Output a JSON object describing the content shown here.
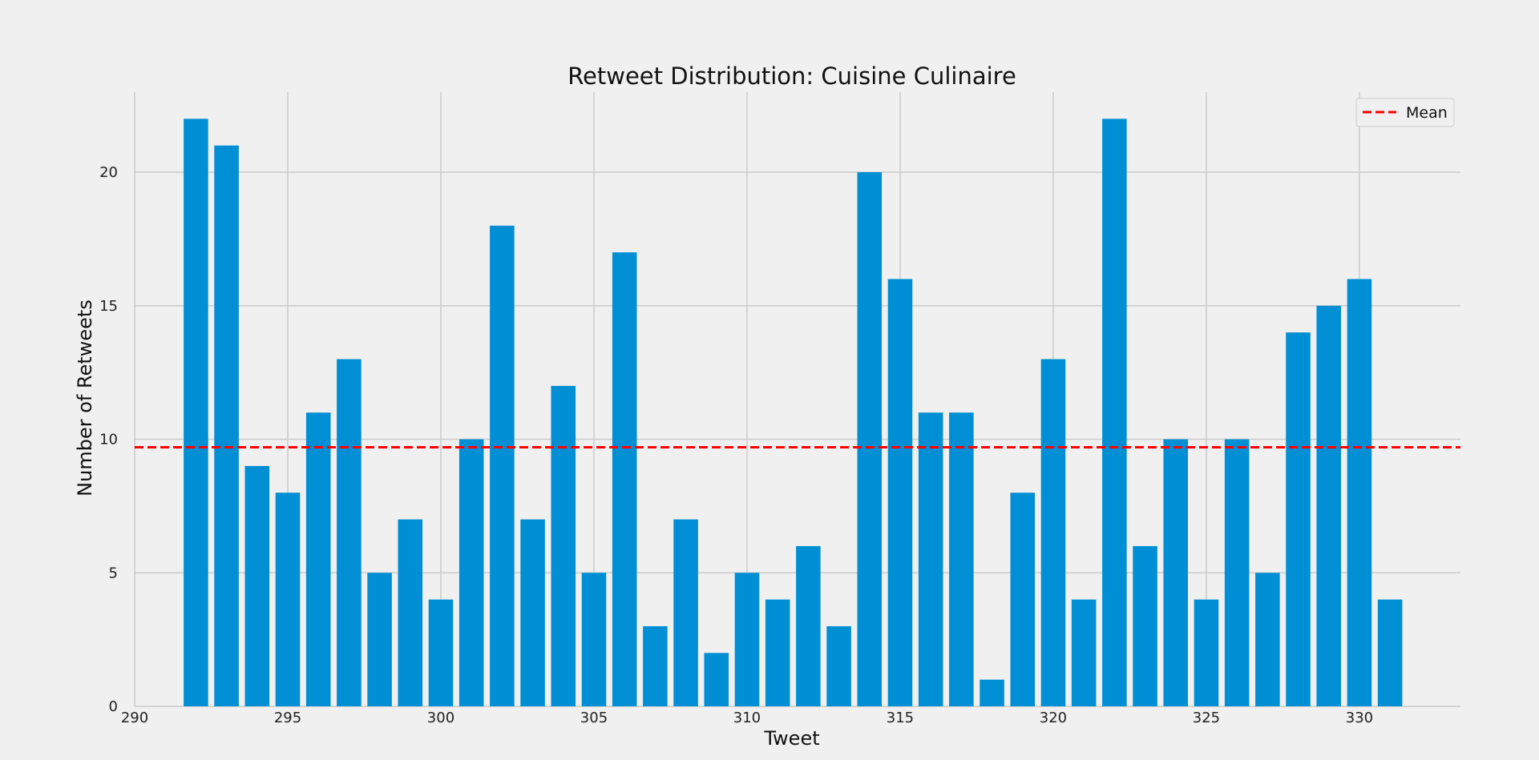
{
  "chart_data": {
    "type": "bar",
    "title": "Retweet Distribution: Cuisine Culinaire",
    "xlabel": "Tweet",
    "ylabel": "Number of Retweets",
    "x": [
      292,
      293,
      294,
      295,
      296,
      297,
      298,
      299,
      300,
      301,
      302,
      303,
      304,
      305,
      306,
      307,
      308,
      309,
      310,
      311,
      312,
      313,
      314,
      315,
      316,
      317,
      318,
      319,
      320,
      321,
      322,
      323,
      324,
      325,
      326,
      327,
      328,
      329,
      330,
      331
    ],
    "values": [
      22,
      21,
      9,
      8,
      11,
      13,
      5,
      7,
      4,
      10,
      18,
      7,
      12,
      5,
      17,
      3,
      7,
      2,
      5,
      4,
      6,
      3,
      20,
      16,
      11,
      11,
      1,
      8,
      13,
      4,
      22,
      6,
      10,
      4,
      10,
      5,
      14,
      15,
      16,
      4
    ],
    "mean": 9.7,
    "xlim": [
      290,
      333.3
    ],
    "ylim": [
      0,
      23
    ],
    "xticks": [
      290,
      295,
      300,
      305,
      310,
      315,
      320,
      325,
      330
    ],
    "yticks": [
      0,
      5,
      10,
      15,
      20
    ],
    "grid": true,
    "legend": {
      "position": "top-right",
      "entries": [
        {
          "label": "Mean",
          "style": "dashed",
          "color": "#ff0000"
        }
      ]
    },
    "colors": {
      "bar": "#008fd5",
      "mean_line": "#ff0000",
      "background": "#f0f0f0",
      "grid": "#cbcbcb"
    }
  }
}
